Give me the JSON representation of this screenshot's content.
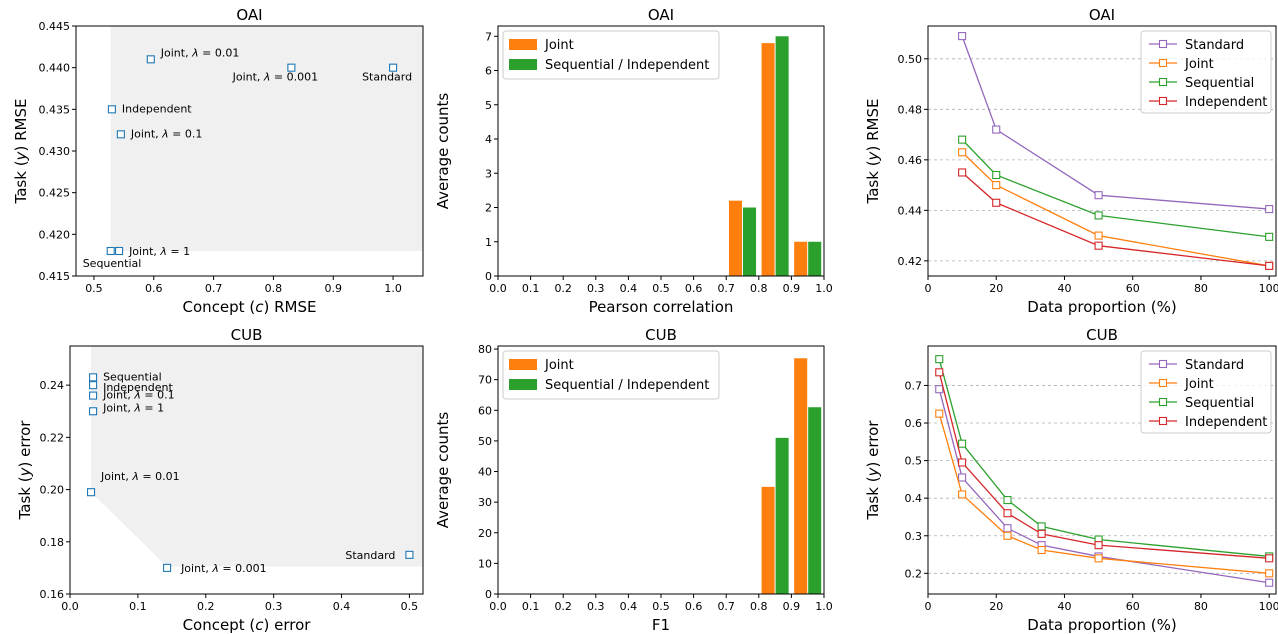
{
  "chart_data": [
    {
      "id": "p1",
      "type": "scatter",
      "title": "OAI",
      "xlabel": "Concept (c) RMSE",
      "ylabel": "Task (y) RMSE",
      "xlim": [
        0.47,
        1.05
      ],
      "ylim": [
        0.415,
        0.445
      ],
      "xticks": [
        0.5,
        0.6,
        0.7,
        0.8,
        0.9,
        1.0
      ],
      "yticks": [
        0.415,
        0.42,
        0.425,
        0.43,
        0.435,
        0.44,
        0.445
      ],
      "tick_decimals": [
        1,
        3
      ],
      "marker_color": "#1f77b4",
      "shaded_region": [
        [
          0.528,
          0.445
        ],
        [
          0.528,
          0.418
        ],
        [
          1.05,
          0.418
        ],
        [
          1.05,
          0.445
        ]
      ],
      "points": [
        {
          "x": 0.595,
          "y": 0.441,
          "label": "Joint, λ = 0.01"
        },
        {
          "x": 0.83,
          "y": 0.44,
          "label": "Joint, λ = 0.001"
        },
        {
          "x": 1.0,
          "y": 0.44,
          "label": "Standard"
        },
        {
          "x": 0.53,
          "y": 0.435,
          "label": "Independent"
        },
        {
          "x": 0.545,
          "y": 0.432,
          "label": "Joint, λ = 0.1"
        },
        {
          "x": 0.528,
          "y": 0.418,
          "label": "Sequential"
        },
        {
          "x": 0.542,
          "y": 0.418,
          "label": "Joint, λ = 1"
        }
      ]
    },
    {
      "id": "p2",
      "type": "bar",
      "title": "OAI",
      "xlabel": "Pearson correlation",
      "ylabel": "Average counts",
      "xlim": [
        0.0,
        1.0
      ],
      "ylim": [
        0,
        7.3
      ],
      "xticks": [
        0.0,
        0.1,
        0.2,
        0.3,
        0.4,
        0.5,
        0.6,
        0.7,
        0.8,
        0.9,
        1.0
      ],
      "yticks": [
        0,
        1,
        2,
        3,
        4,
        5,
        6,
        7
      ],
      "tick_decimals": [
        1,
        0
      ],
      "bin_centers": [
        0.75,
        0.85,
        0.95
      ],
      "series": [
        {
          "name": "Joint",
          "color": "#ff7f0e",
          "values": [
            2.2,
            6.8,
            1.0
          ]
        },
        {
          "name": "Sequential / Independent",
          "color": "#2ca02c",
          "values": [
            2.0,
            7.0,
            1.0
          ]
        }
      ],
      "legend": "top-left"
    },
    {
      "id": "p3",
      "type": "line",
      "title": "OAI",
      "xlabel": "Data proportion (%)",
      "ylabel": "Task (y) RMSE",
      "xlim": [
        0,
        102
      ],
      "ylim": [
        0.414,
        0.513
      ],
      "xticks": [
        0,
        20,
        40,
        60,
        80,
        100
      ],
      "yticks": [
        0.42,
        0.44,
        0.46,
        0.48,
        0.5
      ],
      "tick_decimals": [
        0,
        2
      ],
      "x": [
        10,
        20,
        50,
        100
      ],
      "series": [
        {
          "name": "Standard",
          "color": "#9467bd",
          "values": [
            0.509,
            0.472,
            0.446,
            0.4405
          ]
        },
        {
          "name": "Joint",
          "color": "#ff7f0e",
          "values": [
            0.463,
            0.45,
            0.43,
            0.418
          ]
        },
        {
          "name": "Sequential",
          "color": "#2ca02c",
          "values": [
            0.468,
            0.454,
            0.438,
            0.4295
          ]
        },
        {
          "name": "Independent",
          "color": "#d62728",
          "values": [
            0.455,
            0.443,
            0.426,
            0.418
          ]
        }
      ],
      "grid": "horizontal dashed",
      "legend": "top-right"
    },
    {
      "id": "p4",
      "type": "scatter",
      "title": "CUB",
      "xlabel": "Concept (c) error",
      "ylabel": "Task (y) error",
      "xlim": [
        0.0,
        0.52
      ],
      "ylim": [
        0.16,
        0.255
      ],
      "xticks": [
        0.0,
        0.1,
        0.2,
        0.3,
        0.4,
        0.5
      ],
      "yticks": [
        0.16,
        0.18,
        0.2,
        0.22,
        0.24
      ],
      "tick_decimals": [
        1,
        2
      ],
      "marker_color": "#1f77b4",
      "shaded_region": [
        [
          0.031,
          0.255
        ],
        [
          0.031,
          0.199
        ],
        [
          0.143,
          0.1705
        ],
        [
          0.52,
          0.1705
        ],
        [
          0.52,
          0.255
        ]
      ],
      "points": [
        {
          "x": 0.034,
          "y": 0.243,
          "label": "Sequential"
        },
        {
          "x": 0.034,
          "y": 0.24,
          "label": "Independent"
        },
        {
          "x": 0.034,
          "y": 0.236,
          "label": "Joint, λ = 0.1"
        },
        {
          "x": 0.034,
          "y": 0.23,
          "label": "Joint, λ = 1"
        },
        {
          "x": 0.031,
          "y": 0.199,
          "label": "Joint, λ = 0.01"
        },
        {
          "x": 0.143,
          "y": 0.17,
          "label": "Joint, λ = 0.001"
        },
        {
          "x": 0.5,
          "y": 0.175,
          "label": "Standard"
        }
      ]
    },
    {
      "id": "p5",
      "type": "bar",
      "title": "CUB",
      "xlabel": "F1",
      "ylabel": "Average counts",
      "xlim": [
        0.0,
        1.0
      ],
      "ylim": [
        0,
        81
      ],
      "xticks": [
        0.0,
        0.1,
        0.2,
        0.3,
        0.4,
        0.5,
        0.6,
        0.7,
        0.8,
        0.9,
        1.0
      ],
      "yticks": [
        0,
        10,
        20,
        30,
        40,
        50,
        60,
        70,
        80
      ],
      "tick_decimals": [
        1,
        0
      ],
      "bin_centers": [
        0.85,
        0.95
      ],
      "series": [
        {
          "name": "Joint",
          "color": "#ff7f0e",
          "values": [
            35,
            77
          ]
        },
        {
          "name": "Sequential / Independent",
          "color": "#2ca02c",
          "values": [
            51,
            61
          ]
        }
      ],
      "legend": "top-left"
    },
    {
      "id": "p6",
      "type": "line",
      "title": "CUB",
      "xlabel": "Data proportion (%)",
      "ylabel": "Task (y) error",
      "xlim": [
        0,
        102
      ],
      "ylim": [
        0.145,
        0.805
      ],
      "xticks": [
        0,
        20,
        40,
        60,
        80,
        100
      ],
      "yticks": [
        0.2,
        0.3,
        0.4,
        0.5,
        0.6,
        0.7
      ],
      "tick_decimals": [
        0,
        1
      ],
      "x": [
        3.3,
        10,
        23.3,
        33.3,
        50,
        100
      ],
      "series": [
        {
          "name": "Standard",
          "color": "#9467bd",
          "values": [
            0.69,
            0.455,
            0.32,
            0.275,
            0.245,
            0.175
          ]
        },
        {
          "name": "Joint",
          "color": "#ff7f0e",
          "values": [
            0.625,
            0.41,
            0.3,
            0.262,
            0.24,
            0.2
          ]
        },
        {
          "name": "Sequential",
          "color": "#2ca02c",
          "values": [
            0.77,
            0.545,
            0.395,
            0.325,
            0.29,
            0.245
          ]
        },
        {
          "name": "Independent",
          "color": "#d62728",
          "values": [
            0.735,
            0.495,
            0.36,
            0.305,
            0.275,
            0.24
          ]
        }
      ],
      "grid": "horizontal dashed",
      "legend": "top-right"
    }
  ]
}
